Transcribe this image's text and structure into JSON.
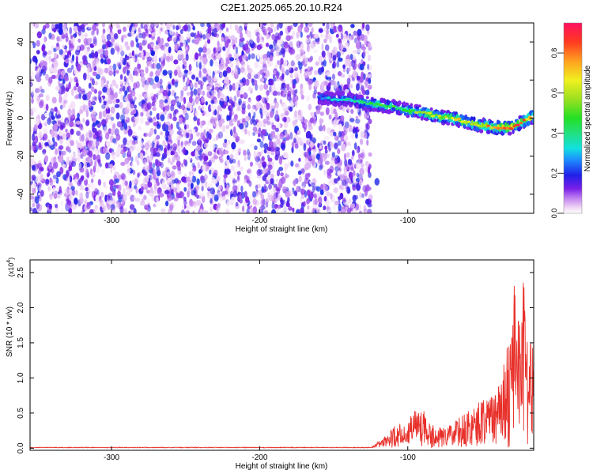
{
  "figure": {
    "title": "C2E1.2025.065.20.10.R24"
  },
  "chart_data": [
    {
      "type": "heatmap",
      "xlabel": "Height of straight line (km)",
      "ylabel": "Frequency (Hz)",
      "xlim": [
        -355,
        -15
      ],
      "ylim": [
        -50,
        50
      ],
      "x_ticks": [
        -300,
        -200,
        -100
      ],
      "y_ticks": [
        -40,
        -20,
        0,
        20,
        40
      ],
      "colorbar": {
        "label": "Normalized spectral amplitude",
        "range": [
          0,
          0.95
        ],
        "ticks": [
          0.0,
          0.2,
          0.4,
          0.6,
          0.8
        ]
      },
      "noise_region": {
        "x_range": [
          -355,
          -125
        ],
        "freq_range": [
          -50,
          50
        ],
        "amplitude": 0.15
      },
      "signal_track": {
        "x": [
          -160,
          -150,
          -140,
          -130,
          -120,
          -110,
          -100,
          -90,
          -80,
          -70,
          -60,
          -50,
          -40,
          -30,
          -20,
          -15
        ],
        "frequency": [
          11,
          10,
          10,
          8,
          7,
          6,
          4,
          3,
          1,
          0,
          -2,
          -4,
          -5,
          -5,
          -1,
          1
        ],
        "peak_amplitude": [
          0.3,
          0.35,
          0.4,
          0.45,
          0.5,
          0.5,
          0.55,
          0.6,
          0.65,
          0.7,
          0.7,
          0.75,
          0.85,
          0.9,
          0.85,
          0.8
        ]
      },
      "grid": false
    },
    {
      "type": "line",
      "xlabel": "Height of straight line (km)",
      "ylabel": "SNR (10 * v/v)",
      "y_multiplier": "(x10^4)",
      "y_multiplier_base": "(x10",
      "y_multiplier_exp": "4",
      "xlim": [
        -355,
        -15
      ],
      "ylim": [
        -0.03,
        2.68
      ],
      "x_ticks": [
        -300,
        -200,
        -100
      ],
      "y_ticks": [
        0.0,
        0.5,
        1.0,
        1.5,
        2.0,
        2.5
      ],
      "color": "#e8302a",
      "envelope": {
        "x": [
          -355,
          -125,
          -120,
          -110,
          -100,
          -95,
          -88,
          -85,
          -80,
          -75,
          -70,
          -65,
          -60,
          -55,
          -50,
          -45,
          -40,
          -35,
          -30,
          -28,
          -25,
          -22,
          -20,
          -18,
          -15
        ],
        "y": [
          0.01,
          0.01,
          0.1,
          0.3,
          0.45,
          0.55,
          0.6,
          0.35,
          0.3,
          0.3,
          0.35,
          0.45,
          0.55,
          0.6,
          0.75,
          0.7,
          0.85,
          1.3,
          1.65,
          2.35,
          1.8,
          2.65,
          1.5,
          1.55,
          1.4
        ]
      },
      "grid": false
    }
  ]
}
